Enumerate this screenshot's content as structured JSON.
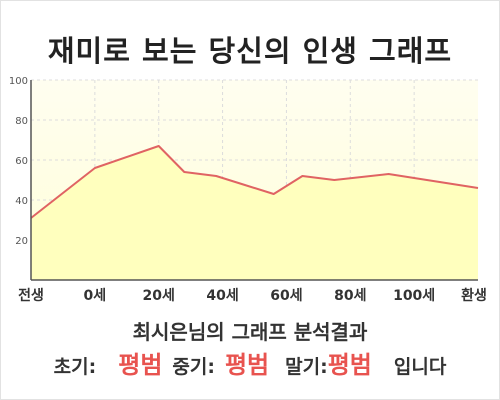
{
  "chart_data": {
    "type": "area",
    "title": "재미로 보는 당신의 인생 그래프",
    "x_labels": [
      "전생",
      "0세",
      "20세",
      "40세",
      "60세",
      "80세",
      "100세",
      "환생"
    ],
    "points": [
      {
        "x": -20,
        "y": 31
      },
      {
        "x": 0,
        "y": 56
      },
      {
        "x": 20,
        "y": 67
      },
      {
        "x": 28,
        "y": 54
      },
      {
        "x": 38,
        "y": 52
      },
      {
        "x": 46,
        "y": 48
      },
      {
        "x": 56,
        "y": 43
      },
      {
        "x": 65,
        "y": 52
      },
      {
        "x": 75,
        "y": 50
      },
      {
        "x": 92,
        "y": 53
      },
      {
        "x": 100,
        "y": 51
      },
      {
        "x": 120,
        "y": 46
      }
    ],
    "x_ticks": [
      -20,
      0,
      20,
      40,
      60,
      80,
      100,
      120
    ],
    "y_ticks": [
      20,
      40,
      60,
      80,
      100
    ],
    "ylim": [
      0,
      100
    ],
    "xlim": [
      -20,
      120
    ],
    "grid": true,
    "colors": {
      "line": "#e06363",
      "fill": "#ffffbe",
      "plot_bg_top": "#fffef0",
      "plot_bg_bottom": "#ffffd8",
      "grid": "#dcdcdc",
      "axis": "#555555"
    }
  },
  "summary": {
    "text": "최시은님의 그래프 분석결과"
  },
  "verdict": {
    "early_label": "초기:",
    "early_value": "평범",
    "mid_label": "중기:",
    "mid_value": "평범",
    "late_label": "말기:",
    "late_value": "평범",
    "suffix": "입니다"
  }
}
